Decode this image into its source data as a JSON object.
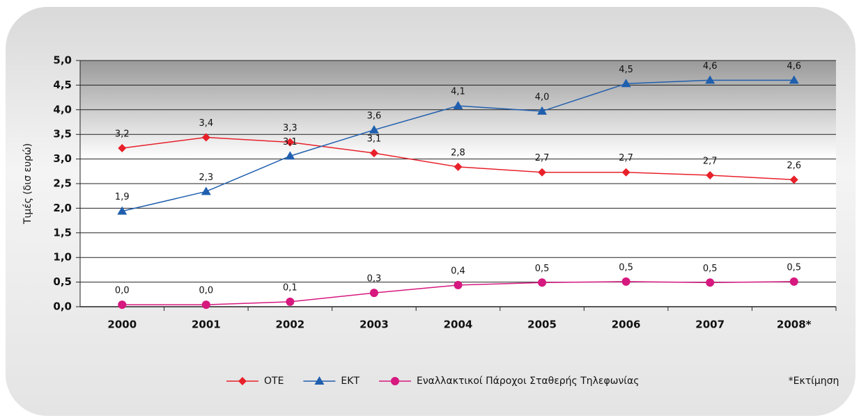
{
  "chart_data": {
    "type": "line",
    "y_label": "Τιμές (δισ ευρώ)",
    "footnote": "*Εκτίμηση",
    "categories": [
      "2000",
      "2001",
      "2002",
      "2003",
      "2004",
      "2005",
      "2006",
      "2007",
      "2008*"
    ],
    "series": [
      {
        "name": "ΟΤΕ",
        "color": "#e8202a",
        "marker": "diamond",
        "values": [
          3.22,
          3.44,
          3.34,
          3.12,
          2.84,
          2.73,
          2.73,
          2.67,
          2.58
        ],
        "value_labels": [
          "3,2",
          "3,4",
          "3,3",
          "3,1",
          "2,8",
          "2,7",
          "2,7",
          "2,7",
          "2,6"
        ]
      },
      {
        "name": "ΕΚΤ",
        "color": "#1f5fae",
        "marker": "triangle",
        "values": [
          1.94,
          2.34,
          3.06,
          3.59,
          4.08,
          3.97,
          4.53,
          4.6,
          4.6
        ],
        "value_labels": [
          "1,9",
          "2,3",
          "3,1",
          "3,6",
          "4,1",
          "4,0",
          "4,5",
          "4,6",
          "4,6"
        ]
      },
      {
        "name": "Εναλλακτικοί Πάροχοι Σταθερής Τηλεφωνίας",
        "color": "#d6187f",
        "marker": "circle",
        "values": [
          0.04,
          0.04,
          0.1,
          0.28,
          0.44,
          0.49,
          0.51,
          0.49,
          0.51
        ],
        "value_labels": [
          "0,0",
          "0,0",
          "0,1",
          "0,3",
          "0,4",
          "0,5",
          "0,5",
          "0,5",
          "0,5"
        ]
      }
    ],
    "ylim": [
      0,
      5
    ],
    "yticks": [
      {
        "value": 0,
        "label": "0,0"
      },
      {
        "value": 0.5,
        "label": "0,5"
      },
      {
        "value": 1,
        "label": "1,0"
      },
      {
        "value": 1.5,
        "label": "1,5"
      },
      {
        "value": 2,
        "label": "2,0"
      },
      {
        "value": 2.5,
        "label": "2,5"
      },
      {
        "value": 3,
        "label": "3,0"
      },
      {
        "value": 3.5,
        "label": "3,5"
      },
      {
        "value": 4,
        "label": "4,0"
      },
      {
        "value": 4.5,
        "label": "4,5"
      },
      {
        "value": 5,
        "label": "5,0"
      }
    ],
    "grid": true
  }
}
